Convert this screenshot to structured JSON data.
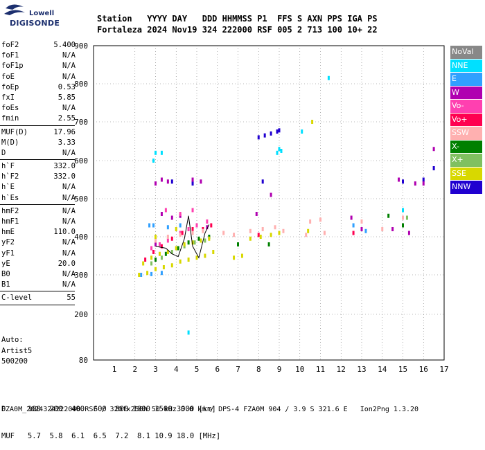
{
  "logo": {
    "top": "Lowell",
    "bottom": "DIGISONDE"
  },
  "header": {
    "line1": "Station   YYYY DAY   DDD HHMMSS P1  FFS S AXN PPS IGA PS",
    "line2": "Fortaleza 2024 Nov19 324 222000 RSF 005 2 713 100 10+ 22"
  },
  "params_group1": [
    {
      "label": "foF2",
      "value": "5.400"
    },
    {
      "label": "foF1",
      "value": "N/A"
    },
    {
      "label": "foF1p",
      "value": "N/A"
    },
    {
      "label": "foE",
      "value": "N/A"
    },
    {
      "label": "foEp",
      "value": "0.53"
    },
    {
      "label": "fxI",
      "value": "5.85"
    },
    {
      "label": "foEs",
      "value": "N/A"
    },
    {
      "label": "fmin",
      "value": "2.55"
    }
  ],
  "params_group2": [
    {
      "label": "MUF(D)",
      "value": "17.96"
    },
    {
      "label": "M(D)",
      "value": "3.33"
    },
    {
      "label": "D",
      "value": "N/A"
    }
  ],
  "params_group3": [
    {
      "label": "h`F",
      "value": "332.0"
    },
    {
      "label": "h`F2",
      "value": "332.0"
    },
    {
      "label": "h`E",
      "value": "N/A"
    },
    {
      "label": "h`Es",
      "value": "N/A"
    }
  ],
  "params_group4": [
    {
      "label": "hmF2",
      "value": "N/A"
    },
    {
      "label": "hmF1",
      "value": "N/A"
    },
    {
      "label": "hmE",
      "value": "110.0"
    },
    {
      "label": "yF2",
      "value": "N/A"
    },
    {
      "label": "yF1",
      "value": "N/A"
    },
    {
      "label": "yE",
      "value": "20.0"
    },
    {
      "label": "B0",
      "value": "N/A"
    },
    {
      "label": "B1",
      "value": "N/A"
    }
  ],
  "params_group5": [
    {
      "label": "C-level",
      "value": "55"
    }
  ],
  "auto": {
    "line1": "Auto:",
    "line2": "Artist5",
    "line3": "500200"
  },
  "legend": [
    {
      "label": "NoVal",
      "color": "#888888"
    },
    {
      "label": "NNE",
      "color": "#00e0ff"
    },
    {
      "label": "E",
      "color": "#30a0ff"
    },
    {
      "label": "W",
      "color": "#b000b0"
    },
    {
      "label": "Vo-",
      "color": "#ff40b0"
    },
    {
      "label": "Vo+",
      "color": "#ff0050"
    },
    {
      "label": "SSW",
      "color": "#ffb0b0"
    },
    {
      "label": "X-",
      "color": "#008000"
    },
    {
      "label": "X+",
      "color": "#80c060"
    },
    {
      "label": "SSE",
      "color": "#d8d800"
    },
    {
      "label": "NNW",
      "color": "#2000d0"
    }
  ],
  "footer": {
    "line1": "D     100  200  400  600  800 1000 1500 3000 [km]",
    "line2": "MUF   5.7  5.8  6.1  6.5  7.2  8.1 10.9 18.0 [MHz]",
    "line3": "FZA0M_2024324222000.RSF / 320fx256h 50 kHz 5.0 km / DPS-4 FZA0M 904 / 3.9 S 321.6 E   Ion2Png 1.3.20"
  },
  "chart_data": {
    "type": "scatter",
    "title": "",
    "xlabel": "",
    "ylabel": "",
    "xlim": [
      1,
      17
    ],
    "ylim": [
      80,
      900
    ],
    "x_ticks": [
      1,
      2,
      3,
      4,
      5,
      6,
      7,
      8,
      9,
      10,
      11,
      12,
      13,
      14,
      15,
      16,
      17
    ],
    "y_ticks": [
      80,
      200,
      300,
      400,
      500,
      600,
      700,
      800,
      900
    ],
    "grid": true,
    "series": [
      {
        "name": "NNW",
        "color": "#2000d0",
        "points": [
          [
            8.0,
            660
          ],
          [
            8.3,
            665
          ],
          [
            8.6,
            670
          ],
          [
            8.9,
            675
          ],
          [
            9.0,
            678
          ],
          [
            3.8,
            545
          ],
          [
            4.8,
            540
          ],
          [
            8.2,
            545
          ],
          [
            15.0,
            545
          ],
          [
            16.0,
            550
          ],
          [
            16.5,
            580
          ]
        ]
      },
      {
        "name": "NNE",
        "color": "#00e0ff",
        "points": [
          [
            9.0,
            630
          ],
          [
            9.1,
            625
          ],
          [
            8.9,
            620
          ],
          [
            3.0,
            620
          ],
          [
            3.3,
            620
          ],
          [
            10.1,
            675
          ],
          [
            11.4,
            815
          ],
          [
            2.9,
            600
          ],
          [
            13.0,
            440
          ],
          [
            15.0,
            470
          ],
          [
            4.6,
            152
          ]
        ]
      },
      {
        "name": "E",
        "color": "#30a0ff",
        "points": [
          [
            2.3,
            300
          ],
          [
            2.8,
            302
          ],
          [
            3.3,
            305
          ],
          [
            3.6,
            425
          ],
          [
            4.2,
            430
          ],
          [
            2.7,
            430
          ],
          [
            12.6,
            430
          ],
          [
            13.2,
            415
          ],
          [
            2.9,
            430
          ]
        ]
      },
      {
        "name": "W",
        "color": "#b000b0",
        "points": [
          [
            3.0,
            540
          ],
          [
            3.3,
            550
          ],
          [
            3.6,
            545
          ],
          [
            4.8,
            550
          ],
          [
            5.2,
            545
          ],
          [
            3.3,
            460
          ],
          [
            3.8,
            450
          ],
          [
            4.2,
            455
          ],
          [
            12.5,
            450
          ],
          [
            13.0,
            420
          ],
          [
            14.5,
            420
          ],
          [
            15.3,
            410
          ],
          [
            15.6,
            540
          ],
          [
            16.0,
            540
          ],
          [
            16.5,
            630
          ],
          [
            14.8,
            550
          ],
          [
            3.0,
            380
          ],
          [
            5.5,
            425
          ],
          [
            8.6,
            510
          ],
          [
            7.9,
            460
          ]
        ]
      },
      {
        "name": "Vo-",
        "color": "#ff40b0",
        "points": [
          [
            2.8,
            370
          ],
          [
            3.2,
            380
          ],
          [
            3.6,
            390
          ],
          [
            4.2,
            410
          ],
          [
            4.6,
            420
          ],
          [
            5.0,
            430
          ],
          [
            5.5,
            440
          ],
          [
            3.5,
            470
          ],
          [
            4.2,
            460
          ],
          [
            4.8,
            470
          ]
        ]
      },
      {
        "name": "Vo+",
        "color": "#ff0050",
        "points": [
          [
            2.5,
            340
          ],
          [
            2.9,
            360
          ],
          [
            3.3,
            375
          ],
          [
            3.8,
            395
          ],
          [
            4.3,
            410
          ],
          [
            4.8,
            420
          ],
          [
            5.3,
            420
          ],
          [
            5.7,
            430
          ],
          [
            8.0,
            405
          ],
          [
            12.6,
            410
          ]
        ]
      },
      {
        "name": "SSW",
        "color": "#ffb0b0",
        "points": [
          [
            3.0,
            390
          ],
          [
            3.6,
            400
          ],
          [
            4.2,
            405
          ],
          [
            4.8,
            410
          ],
          [
            5.3,
            415
          ],
          [
            6.3,
            410
          ],
          [
            6.8,
            405
          ],
          [
            7.6,
            415
          ],
          [
            8.2,
            420
          ],
          [
            8.8,
            425
          ],
          [
            9.2,
            415
          ],
          [
            10.3,
            405
          ],
          [
            11.2,
            410
          ],
          [
            10.5,
            440
          ],
          [
            11.0,
            445
          ],
          [
            13.0,
            440
          ],
          [
            14.0,
            420
          ],
          [
            15.0,
            450
          ]
        ]
      },
      {
        "name": "X-",
        "color": "#008000",
        "points": [
          [
            3.0,
            340
          ],
          [
            3.5,
            355
          ],
          [
            4.1,
            370
          ],
          [
            4.6,
            385
          ],
          [
            5.1,
            395
          ],
          [
            5.6,
            400
          ],
          [
            7.0,
            380
          ],
          [
            8.5,
            380
          ],
          [
            15.0,
            430
          ],
          [
            14.3,
            455
          ]
        ]
      },
      {
        "name": "X+",
        "color": "#80c060",
        "points": [
          [
            2.8,
            330
          ],
          [
            3.3,
            345
          ],
          [
            3.8,
            360
          ],
          [
            4.4,
            375
          ],
          [
            4.9,
            385
          ],
          [
            5.4,
            390
          ],
          [
            15.2,
            450
          ]
        ]
      },
      {
        "name": "SSE",
        "color": "#d8d800",
        "points": [
          [
            2.2,
            300
          ],
          [
            2.6,
            305
          ],
          [
            3.0,
            315
          ],
          [
            3.4,
            320
          ],
          [
            3.8,
            325
          ],
          [
            4.2,
            335
          ],
          [
            4.6,
            340
          ],
          [
            5.0,
            345
          ],
          [
            5.4,
            350
          ],
          [
            5.8,
            360
          ],
          [
            2.4,
            330
          ],
          [
            2.8,
            345
          ],
          [
            3.2,
            355
          ],
          [
            3.6,
            360
          ],
          [
            4.0,
            370
          ],
          [
            4.4,
            380
          ],
          [
            4.8,
            385
          ],
          [
            5.2,
            390
          ],
          [
            5.6,
            395
          ],
          [
            6.8,
            345
          ],
          [
            7.2,
            350
          ],
          [
            7.6,
            395
          ],
          [
            8.1,
            400
          ],
          [
            8.6,
            405
          ],
          [
            9.0,
            410
          ],
          [
            10.4,
            415
          ],
          [
            10.6,
            700
          ],
          [
            4.0,
            420
          ],
          [
            3.0,
            400
          ]
        ]
      }
    ],
    "trace": {
      "color": "#000000",
      "points": [
        [
          3.0,
          375
        ],
        [
          3.5,
          370
        ],
        [
          3.8,
          355
        ],
        [
          4.1,
          348
        ],
        [
          4.4,
          395
        ],
        [
          4.6,
          455
        ],
        [
          4.8,
          375
        ],
        [
          5.1,
          345
        ],
        [
          5.4,
          410
        ],
        [
          5.6,
          432
        ]
      ]
    }
  }
}
